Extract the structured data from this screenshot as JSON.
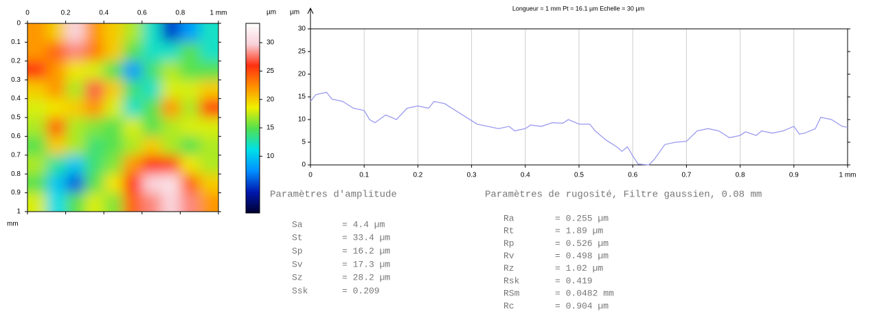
{
  "chart_data": [
    {
      "type": "heatmap",
      "x": [
        0.05,
        0.15,
        0.25,
        0.35,
        0.45,
        0.55,
        0.65,
        0.75,
        0.85,
        0.95
      ],
      "y": [
        0.05,
        0.15,
        0.25,
        0.35,
        0.45,
        0.55,
        0.65,
        0.75,
        0.85,
        0.95
      ],
      "z": [
        [
          22,
          20,
          30,
          22,
          20,
          17,
          12,
          5,
          8,
          12
        ],
        [
          22,
          24,
          28,
          23,
          20,
          15,
          12,
          12,
          15,
          12
        ],
        [
          26,
          22,
          19,
          18,
          15,
          8,
          14,
          17,
          15,
          15
        ],
        [
          20,
          22,
          17,
          27,
          20,
          14,
          12,
          18,
          18,
          20
        ],
        [
          18,
          19,
          20,
          22,
          18,
          12,
          15,
          22,
          17,
          25
        ],
        [
          17,
          24,
          17,
          16,
          15,
          18,
          15,
          17,
          18,
          18
        ],
        [
          15,
          20,
          17,
          14,
          15,
          17,
          20,
          17,
          15,
          17
        ],
        [
          17,
          13,
          10,
          14,
          16,
          22,
          26,
          25,
          19,
          17
        ],
        [
          15,
          10,
          6,
          15,
          19,
          26,
          30,
          31,
          24,
          20
        ],
        [
          18,
          11,
          15,
          18,
          16,
          24,
          28,
          30,
          28,
          22
        ]
      ],
      "xlim": [
        0,
        1
      ],
      "ylim": [
        0,
        1
      ],
      "xticks": [
        0,
        0.2,
        0.4,
        0.6,
        0.8,
        {
          "value": 1,
          "label": "1 mm"
        }
      ],
      "yticks": [
        0,
        0.1,
        0.2,
        0.3,
        0.4,
        0.5,
        0.6,
        0.7,
        0.8,
        0.9,
        1
      ],
      "y_label": "mm",
      "colorbar_label": "µm",
      "zlim": [
        0,
        33.4
      ],
      "zticks": [
        10,
        15,
        20,
        25,
        30
      ],
      "colorscale": [
        "#000030",
        "#0018b0",
        "#0090ff",
        "#00e0e8",
        "#50e050",
        "#f0f000",
        "#ff9000",
        "#ff3010",
        "#f8d0d8",
        "#ffffff"
      ]
    },
    {
      "type": "line",
      "title": "Longueur = 1 mm  Pt = 16.1 µm  Echelle = 30 µm",
      "y_label": "µm",
      "x": [
        0,
        0.01,
        0.03,
        0.04,
        0.06,
        0.08,
        0.1,
        0.11,
        0.12,
        0.14,
        0.16,
        0.18,
        0.2,
        0.22,
        0.23,
        0.25,
        0.27,
        0.29,
        0.31,
        0.33,
        0.35,
        0.37,
        0.38,
        0.4,
        0.41,
        0.43,
        0.45,
        0.47,
        0.48,
        0.5,
        0.52,
        0.53,
        0.55,
        0.57,
        0.58,
        0.59,
        0.6,
        0.61,
        0.63,
        0.64,
        0.66,
        0.68,
        0.7,
        0.72,
        0.74,
        0.76,
        0.78,
        0.8,
        0.81,
        0.83,
        0.84,
        0.86,
        0.88,
        0.9,
        0.91,
        0.92,
        0.94,
        0.95,
        0.97,
        0.99,
        1
      ],
      "values": [
        14,
        15.5,
        16,
        14.5,
        14,
        12.5,
        12,
        10,
        9.3,
        11,
        10,
        12.5,
        13,
        12.5,
        14,
        13.5,
        12,
        10.5,
        9,
        8.5,
        8,
        8.5,
        7.5,
        8,
        8.8,
        8.5,
        9.3,
        9.2,
        10,
        9,
        9,
        7.5,
        5.5,
        4,
        3,
        4,
        2,
        0.2,
        0,
        1.2,
        4.5,
        5,
        5.2,
        7.5,
        8,
        7.5,
        6,
        6.5,
        7.3,
        6.5,
        7.5,
        7,
        7.5,
        8.5,
        6.8,
        7,
        8,
        10.5,
        10,
        8.5,
        8.3
      ],
      "color": "#9a9af0",
      "xlim": [
        0,
        1
      ],
      "ylim": [
        0,
        30
      ],
      "xticks": [
        0,
        0.1,
        0.2,
        0.3,
        0.4,
        0.5,
        0.6,
        0.7,
        0.8,
        0.9,
        {
          "value": 1,
          "label": "1 mm"
        }
      ],
      "yticks": [
        0,
        5,
        10,
        15,
        20,
        25,
        30
      ],
      "grid": "x"
    }
  ],
  "parameters": [
    {
      "title": "Paramètres d'amplitude",
      "rows": [
        [
          "Sa",
          "= 4.4 µm"
        ],
        [
          "St",
          "= 33.4 µm"
        ],
        [
          "Sp",
          "= 16.2 µm"
        ],
        [
          "Sv",
          "= 17.3 µm"
        ],
        [
          "Sz",
          "= 28.2 µm"
        ],
        [
          "Ssk",
          "= 0.209"
        ]
      ]
    },
    {
      "title": "Paramètres de rugosité, Filtre gaussien, 0.08 mm",
      "rows": [
        [
          "Ra",
          "= 0.255 µm"
        ],
        [
          "Rt",
          "= 1.89 µm"
        ],
        [
          "Rp",
          "= 0.526 µm"
        ],
        [
          "Rv",
          "= 0.498 µm"
        ],
        [
          "Rz",
          "= 1.02 µm"
        ],
        [
          "Rsk",
          "= 0.419"
        ],
        [
          "RSm",
          "= 0.0482 mm"
        ],
        [
          "Rc",
          "= 0.904 µm"
        ]
      ]
    }
  ]
}
